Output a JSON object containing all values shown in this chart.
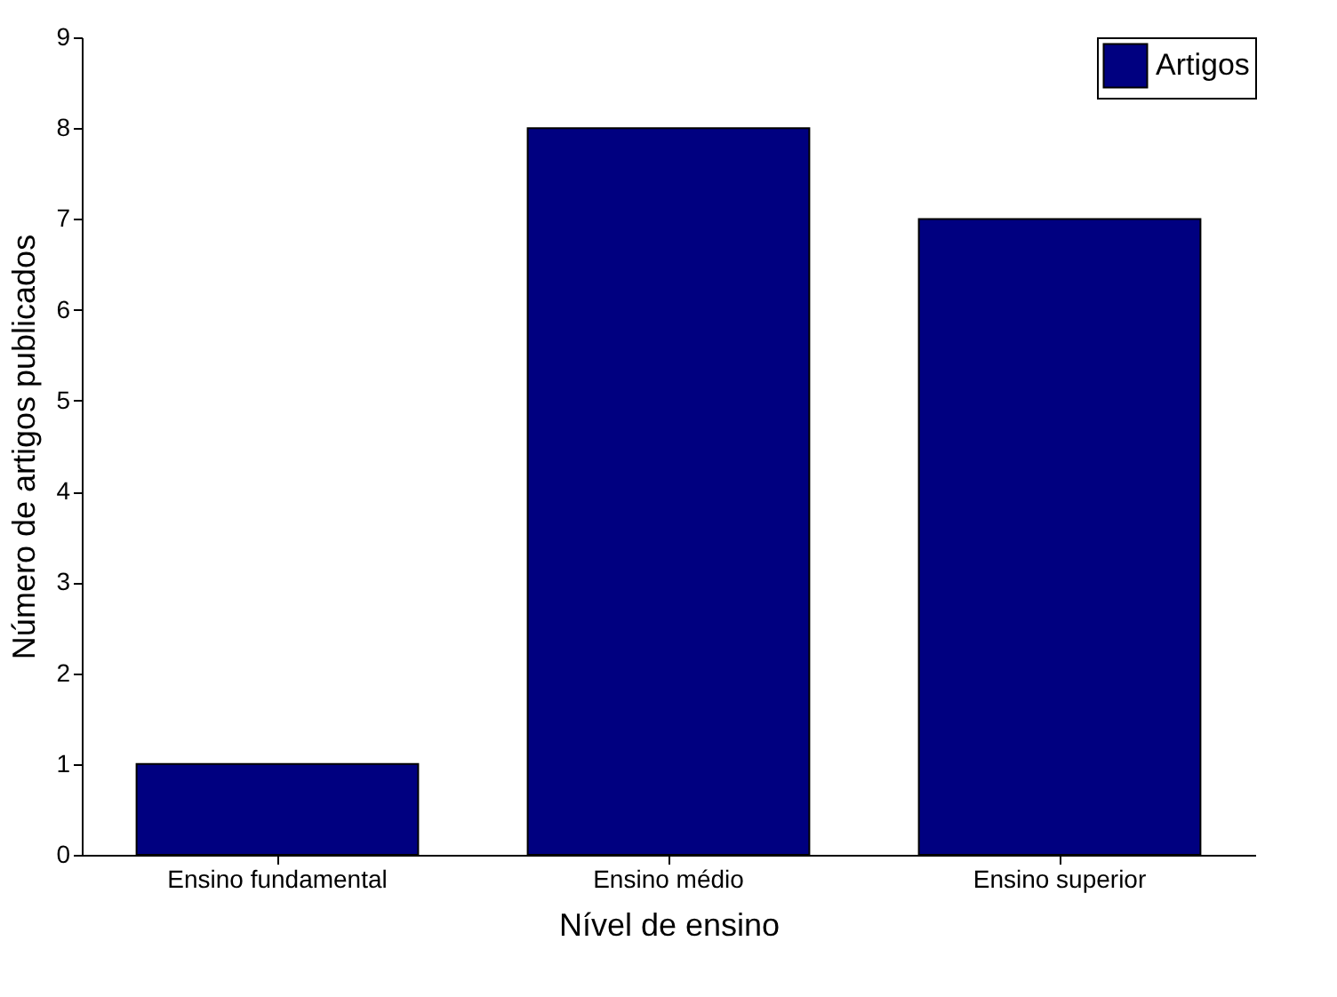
{
  "chart_data": {
    "type": "bar",
    "xlabel": "Nível de ensino",
    "ylabel": "Número de artigos publicados",
    "categories": [
      "Ensino fundamental",
      "Ensino médio",
      "Ensino superior"
    ],
    "series": [
      {
        "name": "Artigos",
        "color": "#000080",
        "values": [
          1,
          8,
          7
        ]
      }
    ],
    "ylim": [
      0,
      9
    ],
    "yticks": [
      0,
      1,
      2,
      3,
      4,
      5,
      6,
      7,
      8,
      9
    ],
    "grid": false,
    "legend": "top right"
  }
}
